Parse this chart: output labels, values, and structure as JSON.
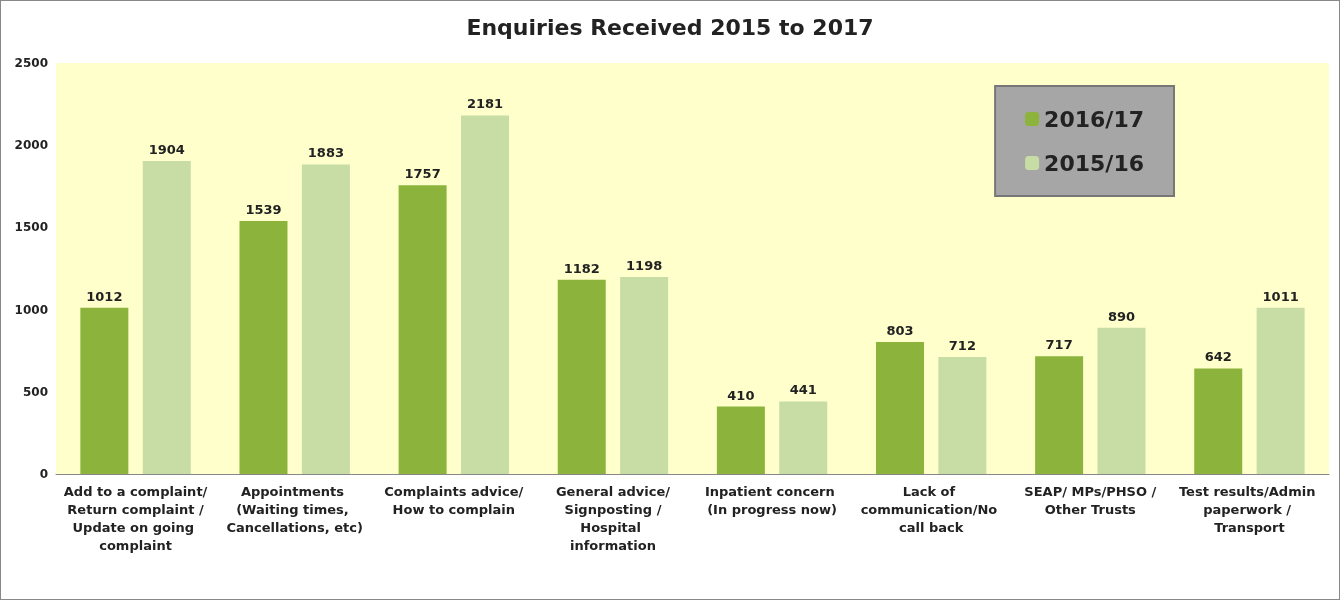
{
  "chart_data": {
    "type": "bar",
    "title": "Enquiries Received 2015 to 2017",
    "categories": [
      "Add to a complaint/Return complaint /Update on going complaint",
      "Appointments (Waiting times, Cancellations, etc)",
      "Complaints advice/How to complain",
      "General advice/Signposting /Hospital information",
      "Inpatient concern (In progress now)",
      "Lack of communication/No call back",
      "SEAP/ MPs/PHSO /Other Trusts",
      "Test results/Admin paperwork / Transport"
    ],
    "series": [
      {
        "name": "2016/17",
        "color": "#8cb43c",
        "values": [
          1012,
          1539,
          1757,
          1182,
          410,
          803,
          717,
          642
        ]
      },
      {
        "name": "2015/16",
        "color": "#c8dca5",
        "values": [
          1904,
          1883,
          2181,
          1198,
          441,
          712,
          890,
          1011
        ]
      }
    ],
    "ylim": [
      0,
      2500
    ],
    "yticks": [
      0,
      500,
      1000,
      1500,
      2000,
      2500
    ],
    "data_labels": true,
    "grid": false,
    "legend": "top right"
  }
}
